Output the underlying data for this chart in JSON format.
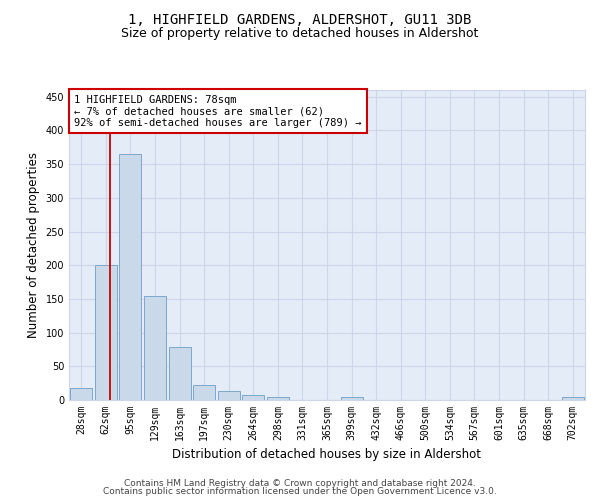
{
  "title_line1": "1, HIGHFIELD GARDENS, ALDERSHOT, GU11 3DB",
  "title_line2": "Size of property relative to detached houses in Aldershot",
  "xlabel": "Distribution of detached houses by size in Aldershot",
  "ylabel": "Number of detached properties",
  "footer_line1": "Contains HM Land Registry data © Crown copyright and database right 2024.",
  "footer_line2": "Contains public sector information licensed under the Open Government Licence v3.0.",
  "bin_labels": [
    "28sqm",
    "62sqm",
    "95sqm",
    "129sqm",
    "163sqm",
    "197sqm",
    "230sqm",
    "264sqm",
    "298sqm",
    "331sqm",
    "365sqm",
    "399sqm",
    "432sqm",
    "466sqm",
    "500sqm",
    "534sqm",
    "567sqm",
    "601sqm",
    "635sqm",
    "668sqm",
    "702sqm"
  ],
  "bar_values": [
    18,
    200,
    365,
    155,
    78,
    22,
    13,
    8,
    4,
    0,
    0,
    4,
    0,
    0,
    0,
    0,
    0,
    0,
    0,
    0,
    4
  ],
  "bar_color": "#c9d9ea",
  "bar_edge_color": "#7aa8cc",
  "grid_color": "#ccd6e8",
  "background_color": "#e4ecf7",
  "annotation_line1": "1 HIGHFIELD GARDENS: 78sqm",
  "annotation_line2": "← 7% of detached houses are smaller (62)",
  "annotation_line3": "92% of semi-detached houses are larger (789) →",
  "annotation_box_edge": "#cc0000",
  "red_line_x": 1.18,
  "ylim_max": 460,
  "yticks": [
    0,
    50,
    100,
    150,
    200,
    250,
    300,
    350,
    400,
    450
  ],
  "title1_fontsize": 10,
  "title2_fontsize": 9,
  "ylabel_fontsize": 8.5,
  "xlabel_fontsize": 8.5,
  "tick_fontsize": 7,
  "annot_fontsize": 7.5,
  "footer_fontsize": 6.5
}
